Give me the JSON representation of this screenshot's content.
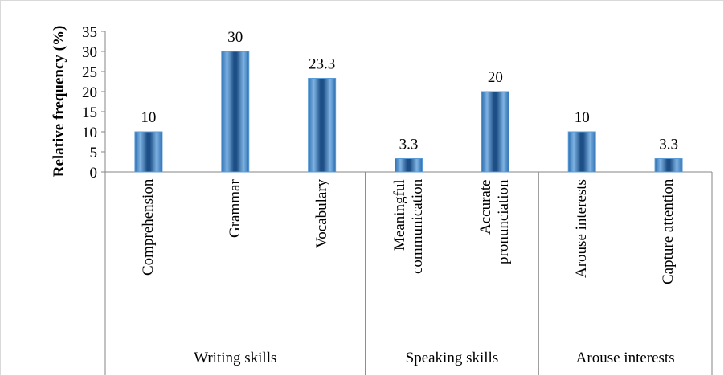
{
  "chart_data": {
    "type": "bar",
    "y_axis_label": "Relative frequency (%)",
    "groups": [
      {
        "name": "Writing skills",
        "categories": [
          "Comprehension",
          "Grammar",
          "Vocabulary"
        ]
      },
      {
        "name": "Speaking skills",
        "categories": [
          "Meaningful communication",
          "Accurate pronunciation"
        ]
      },
      {
        "name": "Arouse interests",
        "categories": [
          "Arouse interests",
          "Capture attention"
        ]
      }
    ],
    "values": [
      10,
      30,
      23.3,
      3.3,
      20,
      10,
      3.3
    ],
    "color": "#5b9bd5",
    "ylim": [
      0,
      35
    ],
    "yticks": [
      0,
      5,
      10,
      15,
      20,
      25,
      30,
      35
    ]
  }
}
